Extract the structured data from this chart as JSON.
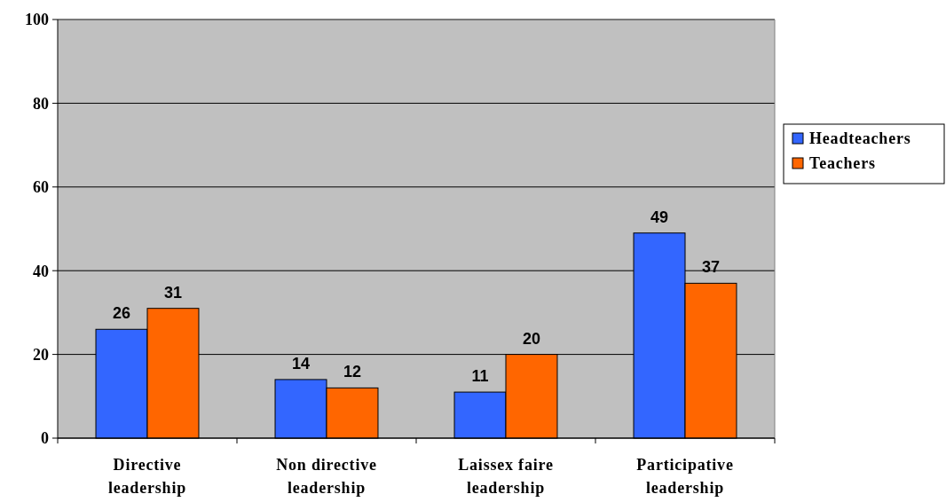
{
  "chart_data": {
    "type": "bar",
    "categories": [
      "Directive leadership",
      "Non directive leadership",
      "Laissex faire leadership",
      "Participative leadership"
    ],
    "series": [
      {
        "name": "Headteachers",
        "color": "#3366ff",
        "values": [
          26,
          14,
          11,
          49
        ]
      },
      {
        "name": "Teachers",
        "color": "#ff6600",
        "values": [
          31,
          12,
          20,
          37
        ]
      }
    ],
    "ylim": [
      0,
      100
    ],
    "yticks": [
      0,
      20,
      40,
      60,
      80,
      100
    ],
    "grid": "y",
    "legend": "right",
    "data_labels": true
  }
}
